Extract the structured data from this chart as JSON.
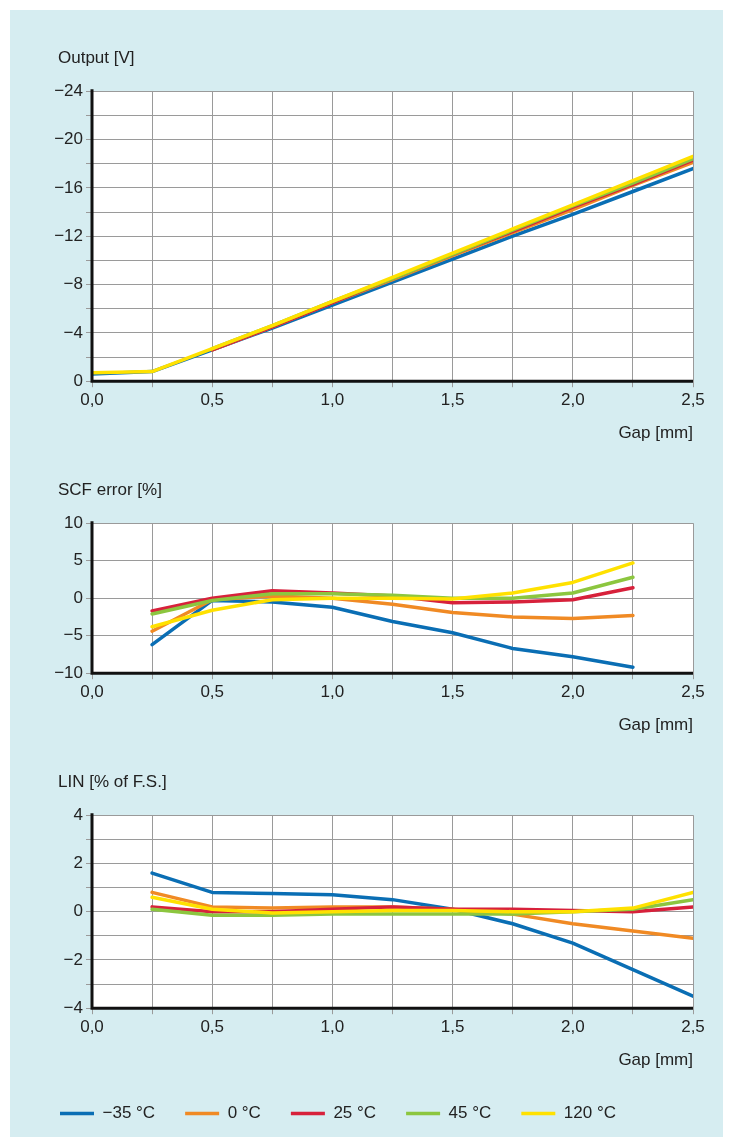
{
  "chart_data": [
    {
      "type": "line",
      "ylabel": "Output [V]",
      "xlabel": "Gap [mm]",
      "xlim": [
        0,
        2.5
      ],
      "xticks": [
        {
          "value": 0,
          "label": "0,0"
        },
        {
          "value": 0.25,
          "label": null
        },
        {
          "value": 0.5,
          "label": "0,5"
        },
        {
          "value": 0.75,
          "label": null
        },
        {
          "value": 1,
          "label": "1,0"
        },
        {
          "value": 1.25,
          "label": null
        },
        {
          "value": 1.5,
          "label": "1,5"
        },
        {
          "value": 1.75,
          "label": null
        },
        {
          "value": 2,
          "label": "2,0"
        },
        {
          "value": 2.25,
          "label": null
        },
        {
          "value": 2.5,
          "label": "2,5"
        }
      ],
      "ylim": [
        0,
        -24
      ],
      "yticks": [
        {
          "value": 0,
          "label": "0"
        },
        {
          "value": -2,
          "label": null
        },
        {
          "value": -4,
          "label": "−4"
        },
        {
          "value": -6,
          "label": null
        },
        {
          "value": -8,
          "label": "−8"
        },
        {
          "value": -10,
          "label": null
        },
        {
          "value": -12,
          "label": "−12"
        },
        {
          "value": -14,
          "label": null
        },
        {
          "value": -16,
          "label": "−16"
        },
        {
          "value": -18,
          "label": null
        },
        {
          "value": -20,
          "label": "−20"
        },
        {
          "value": -22,
          "label": null
        },
        {
          "value": -24,
          "label": "−24"
        }
      ],
      "grid": true,
      "legend": false,
      "marker": "none",
      "line_style": "solid",
      "x": [
        0,
        0.25,
        0.5,
        0.75,
        1,
        1.25,
        1.5,
        1.75,
        2,
        2.25,
        2.5
      ],
      "series": [
        {
          "color": "#0a6eb4",
          "values": [
            -0.6,
            -0.8,
            -2.6,
            -4.4,
            -6.3,
            -8.2,
            -10.1,
            -12.0,
            -13.8,
            -15.7,
            -17.6
          ]
        },
        {
          "color": "#f08a24",
          "values": [
            null,
            null,
            -2.6,
            -4.5,
            -6.5,
            -8.4,
            -10.4,
            -12.3,
            -14.2,
            -16.2,
            -18.1
          ]
        },
        {
          "color": "#d7213b",
          "values": [
            null,
            null,
            -2.6,
            -4.5,
            -6.5,
            -8.5,
            -10.5,
            -12.4,
            -14.4,
            -16.3,
            -18.3
          ]
        },
        {
          "color": "#8cc63f",
          "values": [
            null,
            null,
            -2.7,
            -4.6,
            -6.6,
            -8.5,
            -10.5,
            -12.5,
            -14.5,
            -16.4,
            -18.4
          ]
        },
        {
          "color": "#ffe100",
          "values": [
            -0.7,
            -0.8,
            -2.7,
            -4.6,
            -6.6,
            -8.6,
            -10.6,
            -12.6,
            -14.6,
            -16.6,
            -18.6
          ]
        }
      ]
    },
    {
      "type": "line",
      "ylabel": "SCF error [%]",
      "xlabel": "Gap [mm]",
      "xlim": [
        0,
        2.5
      ],
      "xticks": [
        {
          "value": 0,
          "label": "0,0"
        },
        {
          "value": 0.25,
          "label": null
        },
        {
          "value": 0.5,
          "label": "0,5"
        },
        {
          "value": 0.75,
          "label": null
        },
        {
          "value": 1,
          "label": "1,0"
        },
        {
          "value": 1.25,
          "label": null
        },
        {
          "value": 1.5,
          "label": "1,5"
        },
        {
          "value": 1.75,
          "label": null
        },
        {
          "value": 2,
          "label": "2,0"
        },
        {
          "value": 2.25,
          "label": null
        },
        {
          "value": 2.5,
          "label": "2,5"
        }
      ],
      "ylim": [
        -10,
        10
      ],
      "yticks": [
        {
          "value": -10,
          "label": "−10"
        },
        {
          "value": -5,
          "label": "−5"
        },
        0,
        5,
        10
      ],
      "grid": true,
      "legend": false,
      "marker": "none",
      "line_style": "solid",
      "x": [
        0.25,
        0.5,
        0.75,
        1,
        1.25,
        1.5,
        1.75,
        2,
        2.25
      ],
      "series": [
        {
          "color": "#0a6eb4",
          "values": [
            -6.2,
            -0.3,
            -0.5,
            -1.2,
            -3.1,
            -4.6,
            -6.7,
            -7.8,
            -9.2
          ]
        },
        {
          "color": "#f08a24",
          "values": [
            -4.4,
            -0.2,
            0.3,
            0,
            -0.8,
            -1.9,
            -2.5,
            -2.7,
            -2.3
          ]
        },
        {
          "color": "#d7213b",
          "values": [
            -1.7,
            0,
            1.0,
            0.7,
            0.3,
            -0.6,
            -0.5,
            -0.2,
            1.4
          ]
        },
        {
          "color": "#8cc63f",
          "values": [
            -2.1,
            -0.3,
            0.6,
            0.6,
            0.4,
            0,
            0,
            0.7,
            2.8
          ]
        },
        {
          "color": "#ffe100",
          "values": [
            -3.8,
            -1.6,
            -0.2,
            0,
            0,
            -0.1,
            0.7,
            2.1,
            4.7
          ]
        }
      ]
    },
    {
      "type": "line",
      "ylabel": "LIN [% of F.S.]",
      "xlabel": "Gap [mm]",
      "xlim": [
        0,
        2.5
      ],
      "xticks": [
        {
          "value": 0,
          "label": "0,0"
        },
        {
          "value": 0.25,
          "label": null
        },
        {
          "value": 0.5,
          "label": "0,5"
        },
        {
          "value": 0.75,
          "label": null
        },
        {
          "value": 1,
          "label": "1,0"
        },
        {
          "value": 1.25,
          "label": null
        },
        {
          "value": 1.5,
          "label": "1,5"
        },
        {
          "value": 1.75,
          "label": null
        },
        {
          "value": 2,
          "label": "2,0"
        },
        {
          "value": 2.25,
          "label": null
        },
        {
          "value": 2.5,
          "label": "2,5"
        }
      ],
      "ylim": [
        -4,
        4
      ],
      "yticks": [
        {
          "value": -4,
          "label": "−4"
        },
        {
          "value": -3,
          "label": null
        },
        {
          "value": -2,
          "label": "−2"
        },
        {
          "value": -1,
          "label": null
        },
        0,
        {
          "value": 1,
          "label": null
        },
        2,
        {
          "value": 3,
          "label": null
        },
        4
      ],
      "grid": true,
      "legend": "bottom",
      "marker": "none",
      "line_style": "solid",
      "x": [
        0.25,
        0.5,
        0.75,
        1,
        1.25,
        1.5,
        1.75,
        2,
        2.25,
        2.5
      ],
      "series": [
        {
          "name": "−35 °C",
          "color": "#0a6eb4",
          "values": [
            1.6,
            0.8,
            0.75,
            0.7,
            0.5,
            0.1,
            -0.5,
            -1.3,
            -2.4,
            -3.5
          ]
        },
        {
          "name": "0 °C",
          "color": "#f08a24",
          "values": [
            0.8,
            0.2,
            0.15,
            0.2,
            0.2,
            0.1,
            -0.1,
            -0.5,
            -0.8,
            -1.1
          ]
        },
        {
          "name": "25 °C",
          "color": "#d7213b",
          "values": [
            0.2,
            0,
            0,
            0.1,
            0.2,
            0.1,
            0.1,
            0.05,
            0,
            0.2
          ]
        },
        {
          "name": "45 °C",
          "color": "#8cc63f",
          "values": [
            0.1,
            -0.15,
            -0.15,
            -0.1,
            -0.1,
            -0.1,
            -0.1,
            0,
            0.1,
            0.5
          ]
        },
        {
          "name": "120 °C",
          "color": "#ffe100",
          "values": [
            0.6,
            0.1,
            -0.05,
            0,
            0.05,
            0.05,
            0,
            0,
            0.15,
            0.8
          ]
        }
      ]
    }
  ]
}
